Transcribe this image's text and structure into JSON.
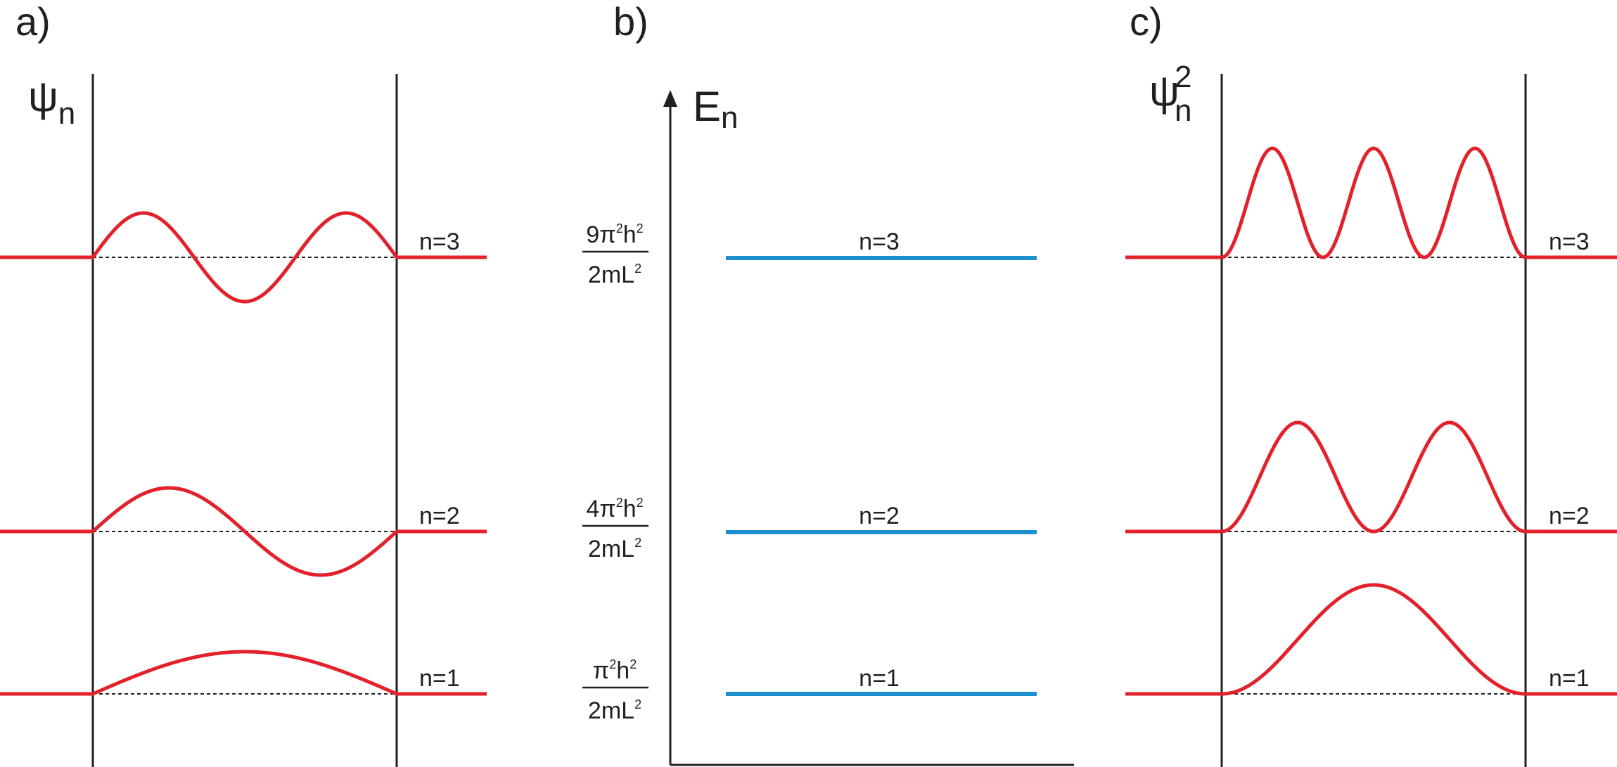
{
  "panels": {
    "a": {
      "label": "a)",
      "axis_symbol": "ψ",
      "axis_subscript": "n",
      "levels": [
        "n=3",
        "n=2",
        "n=1"
      ]
    },
    "b": {
      "label": "b)",
      "axis_symbol": "E",
      "axis_subscript": "n",
      "levels": [
        "n=3",
        "n=2",
        "n=1"
      ],
      "energies": [
        {
          "numerator": "9π²h²",
          "denominator": "2mL²"
        },
        {
          "numerator": "4π²h²",
          "denominator": "2mL²"
        },
        {
          "numerator": "π²h²",
          "denominator": "2mL²"
        }
      ]
    },
    "c": {
      "label": "c)",
      "axis_symbol": "ψ",
      "axis_subscript": "n",
      "axis_superscript": "2",
      "levels": [
        "n=3",
        "n=2",
        "n=1"
      ]
    }
  },
  "colors": {
    "wave": "#e2212b",
    "energy": "#1e90d0",
    "axis": "#231f20"
  }
}
